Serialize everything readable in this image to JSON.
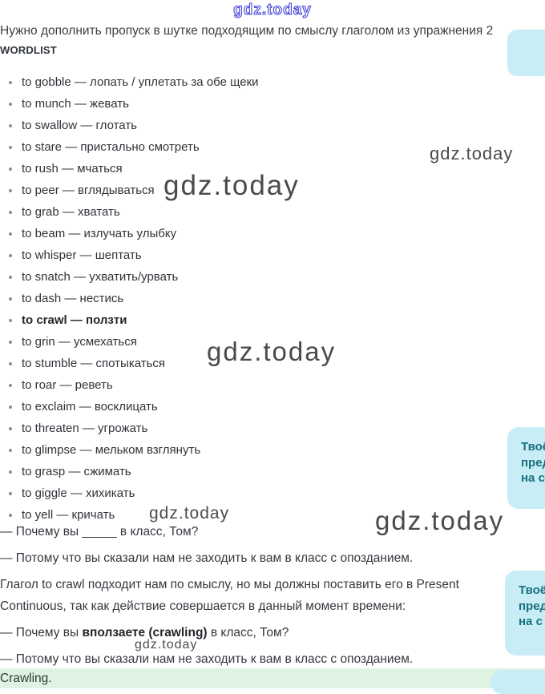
{
  "watermark": {
    "text": "gdz.today"
  },
  "task": {
    "heading": "Нужно дополнить пропуск в шутке подходящим по смыслу глаголом из упражнения 2"
  },
  "wordlist": {
    "title": "WORDLIST",
    "items": [
      {
        "text": "to gobble — лопать / уплетать за обе щеки",
        "bold": false
      },
      {
        "text": "to munch — жевать",
        "bold": false
      },
      {
        "text": "to swallow — глотать",
        "bold": false
      },
      {
        "text": "to stare — пристально смотреть",
        "bold": false
      },
      {
        "text": "to rush — мчаться",
        "bold": false
      },
      {
        "text": "to peer — вглядываться",
        "bold": false
      },
      {
        "text": "to grab — хватать",
        "bold": false
      },
      {
        "text": "to beam — излучать улыбку",
        "bold": false
      },
      {
        "text": "to whisper — шептать",
        "bold": false
      },
      {
        "text": "to snatch — ухватить/урвать",
        "bold": false
      },
      {
        "text": "to dash — нестись",
        "bold": false
      },
      {
        "text": "to crawl — ползти",
        "bold": true
      },
      {
        "text": "to grin — усмехаться",
        "bold": false
      },
      {
        "text": "to stumble — спотыкаться",
        "bold": false
      },
      {
        "text": "to roar — реветь",
        "bold": false
      },
      {
        "text": "to exclaim — восклицать",
        "bold": false
      },
      {
        "text": "to threaten — угрожать",
        "bold": false
      },
      {
        "text": "to glimpse — мельком взглянуть",
        "bold": false
      },
      {
        "text": "to grasp — сжимать",
        "bold": false
      },
      {
        "text": "to giggle — хихикать",
        "bold": false
      },
      {
        "text": "to yell — кричать",
        "bold": false
      }
    ]
  },
  "joke": {
    "question_blank": "— Почему вы _____ в класс, Том?",
    "answer_line": "— Потому что вы сказали нам не заходить к вам в класс с опозданием.",
    "explanation": "Глагол to crawl подходит нам по смыслу, но мы должны поставить его в Present Continuous, так как действие совершается в данный момент времени:",
    "question_prefix": "— Почему вы ",
    "question_bold": "вползаете (crawling)",
    "question_suffix": " в класс, Том?",
    "final_answer": "Crawling."
  },
  "bubble": {
    "lines": [
      "Твоё",
      "пред",
      "на с"
    ]
  },
  "colors": {
    "accent_blue": "#4646d8",
    "bubble_bg": "#c9edf6",
    "bubble_text": "#17707e",
    "answer_bg": "#def3e2"
  }
}
